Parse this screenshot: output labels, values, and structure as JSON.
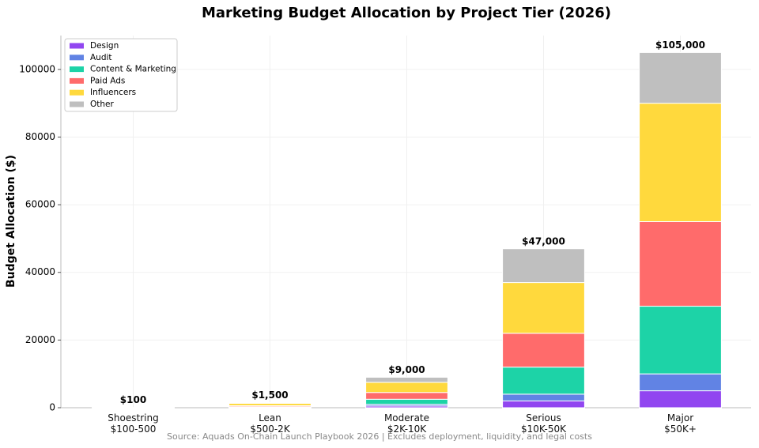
{
  "chart_data": {
    "type": "stacked_bar",
    "title": "Marketing Budget Allocation by Project Tier (2026)",
    "y_label": "Budget Allocation ($)",
    "source": "Source: Aquads On-Chain Launch Playbook 2026 | Excludes deployment, liquidity, and legal costs",
    "categories": [
      "Shoestring\n$100-500",
      "Lean\n$500-2K",
      "Moderate\n$2K-10K",
      "Serious\n$10K-50K",
      "Major\n$50K+"
    ],
    "series": [
      {
        "name": "Design",
        "color": "#9146f0",
        "values": [
          0,
          100,
          500,
          2000,
          5000
        ]
      },
      {
        "name": "Audit",
        "color": "#6183e4",
        "values": [
          0,
          0,
          500,
          2000,
          5000
        ]
      },
      {
        "name": "Content & Marketing",
        "color": "#1dd3a7",
        "values": [
          50,
          200,
          1500,
          8000,
          20000
        ]
      },
      {
        "name": "Paid Ads",
        "color": "#ff6b6b",
        "values": [
          0,
          300,
          2000,
          10000,
          25000
        ]
      },
      {
        "name": "Influencers",
        "color": "#ffd93d",
        "values": [
          50,
          700,
          3000,
          15000,
          35000
        ]
      },
      {
        "name": "Other",
        "color": "#bfbfbf",
        "values": [
          0,
          200,
          1500,
          10000,
          15000
        ]
      }
    ],
    "totals": {
      "values": [
        100,
        1500,
        9000,
        47000,
        105000
      ],
      "value_labels": [
        "$100",
        "$1,500",
        "$9,000",
        "$47,000",
        "$105,000"
      ]
    },
    "ylim": [
      0,
      110000
    ],
    "yticks": [
      0,
      20000,
      40000,
      60000,
      80000,
      100000
    ],
    "grid": true,
    "legend": "upper-left"
  }
}
